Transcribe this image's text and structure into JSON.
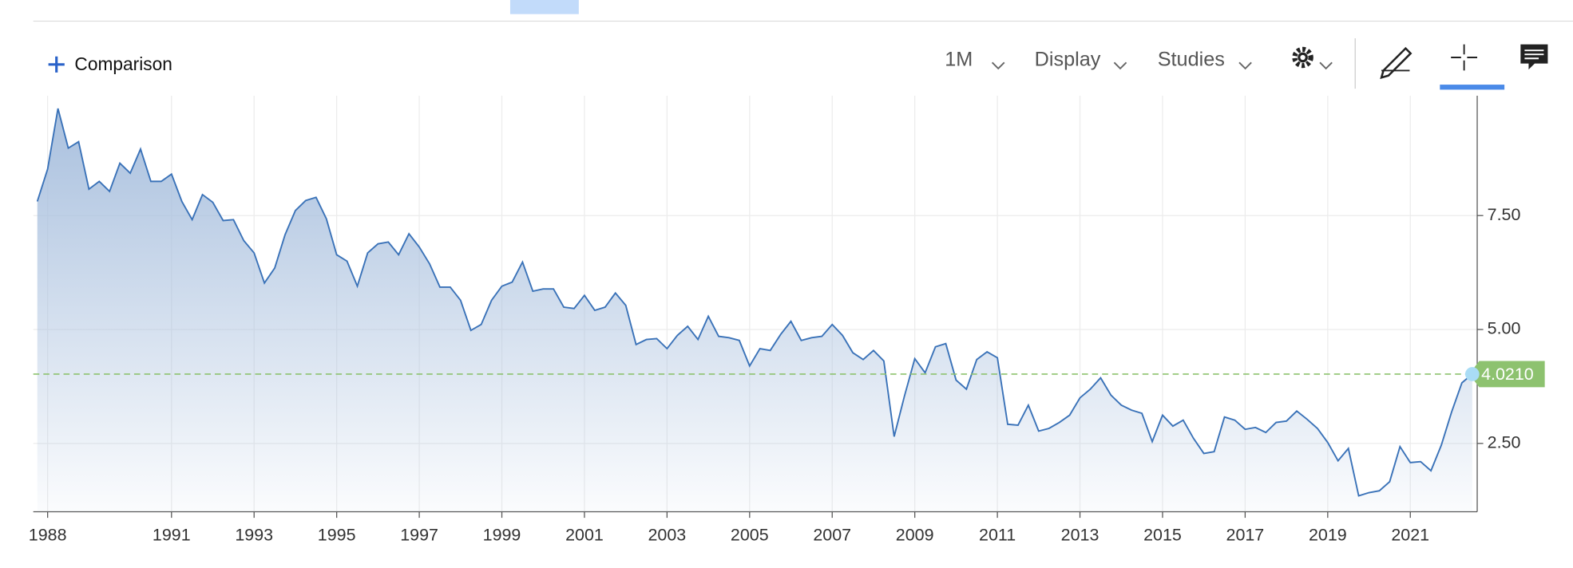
{
  "toolbar": {
    "comparison": "Comparison",
    "interval": "1M",
    "display": "Display",
    "studies": "Studies"
  },
  "chart_data": {
    "type": "line",
    "x": [
      1987.75,
      1988,
      1988.25,
      1988.5,
      1988.75,
      1989,
      1989.25,
      1989.5,
      1989.75,
      1990,
      1990.25,
      1990.5,
      1990.75,
      1991,
      1991.25,
      1991.5,
      1991.75,
      1992,
      1992.25,
      1992.5,
      1992.75,
      1993,
      1993.25,
      1993.5,
      1993.75,
      1994,
      1994.25,
      1994.5,
      1994.75,
      1995,
      1995.25,
      1995.5,
      1995.75,
      1996,
      1996.25,
      1996.5,
      1996.75,
      1997,
      1997.25,
      1997.5,
      1997.75,
      1998,
      1998.25,
      1998.5,
      1998.75,
      1999,
      1999.25,
      1999.5,
      1999.75,
      2000,
      2000.25,
      2000.5,
      2000.75,
      2001,
      2001.25,
      2001.5,
      2001.75,
      2002,
      2002.25,
      2002.5,
      2002.75,
      2003,
      2003.25,
      2003.5,
      2003.75,
      2004,
      2004.25,
      2004.5,
      2004.75,
      2005,
      2005.25,
      2005.5,
      2005.75,
      2006,
      2006.25,
      2006.5,
      2006.75,
      2007,
      2007.25,
      2007.5,
      2007.75,
      2008,
      2008.25,
      2008.5,
      2008.75,
      2009,
      2009.25,
      2009.5,
      2009.75,
      2010,
      2010.25,
      2010.5,
      2010.75,
      2011,
      2011.25,
      2011.5,
      2011.75,
      2012,
      2012.25,
      2012.5,
      2012.75,
      2013,
      2013.25,
      2013.5,
      2013.75,
      2014,
      2014.25,
      2014.5,
      2014.75,
      2015,
      2015.25,
      2015.5,
      2015.75,
      2016,
      2016.25,
      2016.5,
      2016.75,
      2017,
      2017.25,
      2017.5,
      2017.75,
      2018,
      2018.25,
      2018.5,
      2018.75,
      2019,
      2019.25,
      2019.5,
      2019.75,
      2020,
      2020.25,
      2020.5,
      2020.75,
      2021,
      2021.25,
      2021.5,
      2021.75,
      2022,
      2022.25,
      2022.5
    ],
    "series": [
      {
        "color": "#3a72b8",
        "values": [
          7.81,
          8.52,
          9.85,
          8.98,
          9.12,
          8.08,
          8.25,
          8.03,
          8.65,
          8.43,
          8.96,
          8.25,
          8.25,
          8.41,
          7.81,
          7.41,
          7.96,
          7.79,
          7.39,
          7.41,
          6.95,
          6.68,
          6.02,
          6.35,
          7.08,
          7.61,
          7.83,
          7.9,
          7.43,
          6.64,
          6.5,
          5.95,
          6.68,
          6.88,
          6.92,
          6.64,
          7.1,
          6.81,
          6.44,
          5.93,
          5.93,
          5.64,
          4.98,
          5.11,
          5.64,
          5.95,
          6.04,
          6.48,
          5.84,
          5.89,
          5.89,
          5.49,
          5.46,
          5.75,
          5.42,
          5.49,
          5.8,
          5.53,
          4.67,
          4.78,
          4.8,
          4.58,
          4.87,
          5.07,
          4.78,
          5.29,
          4.85,
          4.82,
          4.76,
          4.2,
          4.58,
          4.54,
          4.89,
          5.18,
          4.76,
          4.82,
          4.85,
          5.11,
          4.87,
          4.49,
          4.34,
          4.54,
          4.31,
          2.65,
          3.54,
          4.36,
          4.05,
          4.62,
          4.69,
          3.89,
          3.69,
          4.34,
          4.51,
          4.38,
          2.92,
          2.9,
          3.34,
          2.77,
          2.83,
          2.96,
          3.12,
          3.5,
          3.69,
          3.94,
          3.56,
          3.34,
          3.23,
          3.16,
          2.54,
          3.12,
          2.88,
          3.01,
          2.61,
          2.28,
          2.32,
          3.08,
          3.01,
          2.81,
          2.85,
          2.74,
          2.96,
          2.99,
          3.21,
          3.03,
          2.83,
          2.52,
          2.12,
          2.39,
          1.35,
          1.42,
          1.46,
          1.66,
          2.43,
          2.08,
          2.1,
          1.9,
          2.46,
          3.19,
          3.83,
          4.021
        ]
      }
    ],
    "last_price": {
      "value": 4.021,
      "label": "4.0210",
      "color": "#8dc26f"
    },
    "xlim": [
      1987.75,
      2022.62
    ],
    "xticks": [
      1988,
      1991,
      1993,
      1995,
      1997,
      1999,
      2001,
      2003,
      2005,
      2007,
      2009,
      2011,
      2013,
      2015,
      2017,
      2019,
      2021
    ],
    "ylim": [
      1.0,
      10.13
    ],
    "yticks": [
      {
        "value": 2.5,
        "label": "2.50"
      },
      {
        "value": 5,
        "label": "5.00"
      },
      {
        "value": 7.5,
        "label": "7.50"
      }
    ],
    "grid": true
  }
}
